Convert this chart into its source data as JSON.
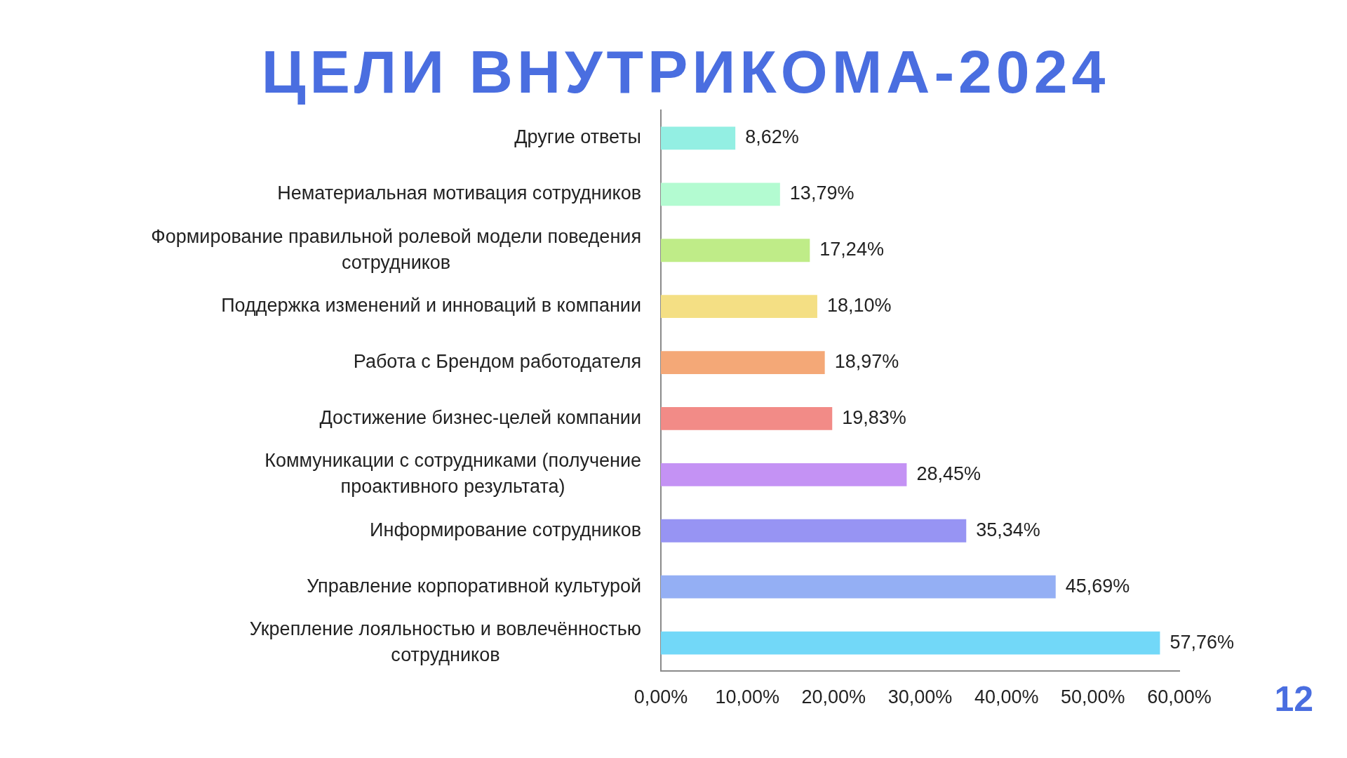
{
  "chart_data": {
    "type": "bar",
    "orientation": "horizontal",
    "title": "ЦЕЛИ ВНУТРИКОМА-2024",
    "categories": [
      "Другие ответы",
      "Нематериальная мотивация сотрудников",
      "Формирование правильной ролевой модели поведения сотрудников",
      "Поддержка изменений и инноваций в компании",
      "Работа с Брендом работодателя",
      "Достижение бизнес-целей компании",
      "Коммуникации с сотрудниками (получение проактивного результата)",
      "Информирование сотрудников",
      "Управление корпоративной культурой",
      "Укрепление лояльностью и вовлечённостью сотрудников"
    ],
    "values": [
      8.62,
      13.79,
      17.24,
      18.1,
      18.97,
      19.83,
      28.45,
      35.34,
      45.69,
      57.76
    ],
    "colors": [
      "#93efe3",
      "#b3fbd1",
      "#bfec88",
      "#f4df84",
      "#f4a877",
      "#f28b87",
      "#c492f4",
      "#9794f3",
      "#94aff4",
      "#72d8f8"
    ],
    "value_labels": [
      "8,62%",
      "13,79%",
      "17,24%",
      "18,10%",
      "18,97%",
      "19,83%",
      "28,45%",
      "35,34%",
      "45,69%",
      "57,76%"
    ],
    "xlim": [
      0,
      60
    ],
    "xticks": [
      {
        "value": 0,
        "label": "0,00%"
      },
      {
        "value": 10,
        "label": "10,00%"
      },
      {
        "value": 20,
        "label": "20,00%"
      },
      {
        "value": 30,
        "label": "30,00%"
      },
      {
        "value": 40,
        "label": "40,00%"
      },
      {
        "value": 50,
        "label": "50,00%"
      },
      {
        "value": 60,
        "label": "60,00%"
      }
    ],
    "annotations": [
      "12"
    ]
  }
}
